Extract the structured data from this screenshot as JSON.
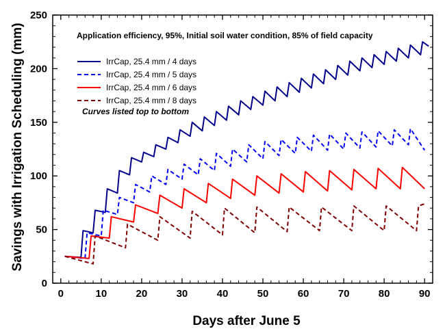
{
  "chart_data": {
    "type": "line",
    "title": "",
    "xlabel": "Days after June 5",
    "ylabel": "Savings with Irrigation Scheduling (mm)",
    "xlim": [
      -2,
      92
    ],
    "ylim": [
      0,
      250
    ],
    "xticks": [
      0,
      10,
      20,
      30,
      40,
      50,
      60,
      70,
      80,
      90
    ],
    "yticks": [
      0,
      50,
      100,
      150,
      200,
      250
    ],
    "grid": false,
    "legend_position": "upper-left",
    "annotation": "Application efficiency, 95%, Initial soil water condition, 85% of field capacity",
    "legend_note": "Curves listed top to bottom",
    "series": [
      {
        "name": "IrrCap, 25.4 mm / 4 days",
        "color": "#00008B",
        "dash": "solid",
        "x": [
          1,
          5,
          5.5,
          8,
          8.5,
          11,
          11.5,
          14,
          14.5,
          17,
          17.5,
          20,
          20.5,
          23,
          23.5,
          26,
          26.5,
          29,
          29.5,
          32,
          32.5,
          35,
          35.5,
          38,
          38.5,
          41,
          41.5,
          44,
          44.5,
          47,
          47.5,
          50,
          50.5,
          53,
          53.5,
          56,
          56.5,
          59,
          59.5,
          62,
          62.5,
          65,
          65.5,
          68,
          68.5,
          71,
          71.5,
          74,
          74.5,
          77,
          77.5,
          80,
          80.5,
          83,
          83.5,
          86,
          86.5,
          89,
          89.5,
          91
        ],
        "values": [
          25,
          24,
          49,
          47,
          68,
          66,
          88,
          84,
          105,
          101,
          117,
          113,
          122,
          118,
          129,
          125,
          136,
          131,
          143,
          137,
          150,
          142,
          155,
          147,
          160,
          152,
          165,
          157,
          170,
          162,
          174,
          166,
          179,
          170,
          183,
          174,
          187,
          178,
          191,
          182,
          195,
          186,
          199,
          190,
          203,
          194,
          207,
          198,
          210,
          201,
          213,
          204,
          216,
          207,
          219,
          210,
          222,
          213,
          225,
          221
        ]
      },
      {
        "name": "IrrCap, 25.4 mm / 5 days",
        "color": "#0000FF",
        "dash": "6,4",
        "x": [
          1,
          6,
          6.5,
          10,
          10.5,
          14,
          14.5,
          18,
          18.5,
          22,
          22.5,
          26,
          26.5,
          30,
          30.5,
          34,
          34.5,
          38,
          38.5,
          42,
          42.5,
          46,
          46.5,
          50,
          50.5,
          54,
          54.5,
          58,
          58.5,
          62,
          62.5,
          66,
          66.5,
          70,
          70.5,
          74,
          74.5,
          78,
          78.5,
          82,
          82.5,
          86,
          86.5,
          90
        ],
        "values": [
          25,
          23,
          47,
          44,
          68,
          64,
          80,
          75,
          92,
          85,
          100,
          92,
          106,
          97,
          111,
          101,
          116,
          105,
          121,
          109,
          125,
          113,
          129,
          116,
          132,
          119,
          134,
          121,
          136,
          123,
          138,
          124,
          139,
          125,
          140,
          126,
          141,
          127,
          142,
          128,
          143,
          129,
          144,
          124
        ]
      },
      {
        "name": "IrrCap, 25.4 mm / 6 days",
        "color": "#FF0000",
        "dash": "solid",
        "x": [
          1,
          7,
          7.5,
          12,
          12.5,
          18,
          18.5,
          24,
          24.5,
          30,
          30.5,
          36,
          36.5,
          42,
          42.5,
          48,
          48.5,
          54,
          54.5,
          60,
          60.5,
          66,
          66.5,
          72,
          72.5,
          78,
          78.5,
          84,
          84.5,
          90
        ],
        "values": [
          25,
          23,
          44,
          42,
          62,
          57,
          73,
          65,
          82,
          70,
          88,
          75,
          93,
          79,
          97,
          82,
          100,
          84,
          102,
          85,
          104,
          86,
          105,
          87,
          106,
          88,
          107,
          88,
          108,
          88
        ]
      },
      {
        "name": "IrrCap, 25.4 mm / 8 days",
        "color": "#800000",
        "dash": "6,4",
        "x": [
          1,
          8,
          8.5,
          16,
          16.5,
          24,
          24.5,
          32,
          32.5,
          40,
          40.5,
          48,
          48.5,
          56,
          56.5,
          64,
          64.5,
          72,
          72.5,
          80,
          80.5,
          88,
          88.5,
          90
        ],
        "values": [
          25,
          18,
          44,
          33,
          55,
          40,
          62,
          42,
          67,
          45,
          70,
          47,
          71,
          48,
          71,
          49,
          71,
          49,
          72,
          49,
          72,
          49,
          72,
          74
        ]
      }
    ]
  }
}
